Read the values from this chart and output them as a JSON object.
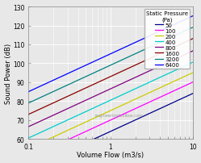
{
  "xlabel": "Volume Flow (m3/s)",
  "ylabel": "Sound Power (dB)",
  "xlim_log": [
    0.1,
    10
  ],
  "ylim": [
    60,
    130
  ],
  "yticks": [
    60,
    70,
    80,
    90,
    100,
    110,
    120,
    130
  ],
  "watermark": "engineeringtoolbox.com",
  "legend_title": "Static Pressure\n(Pa)",
  "series": [
    {
      "label": "50",
      "color": "#00008B",
      "intercept": 64.0
    },
    {
      "label": "100",
      "color": "#FF00FF",
      "intercept": 70.0
    },
    {
      "label": "200",
      "color": "#CCCC00",
      "intercept": 75.0
    },
    {
      "label": "400",
      "color": "#00CCCC",
      "intercept": 80.5
    },
    {
      "label": "800",
      "color": "#800080",
      "intercept": 86.5
    },
    {
      "label": "1600",
      "color": "#8B0000",
      "intercept": 93.0
    },
    {
      "label": "3200",
      "color": "#008080",
      "intercept": 99.0
    },
    {
      "label": "6400",
      "color": "#0000FF",
      "intercept": 105.0
    }
  ],
  "slope": 20.0,
  "bg_color": "#e8e8e8",
  "plot_bg": "#e8e8e8",
  "grid_color": "#ffffff",
  "legend_fontsize": 5.0,
  "legend_title_fontsize": 5.0,
  "axis_fontsize": 6.0,
  "tick_fontsize": 5.5
}
